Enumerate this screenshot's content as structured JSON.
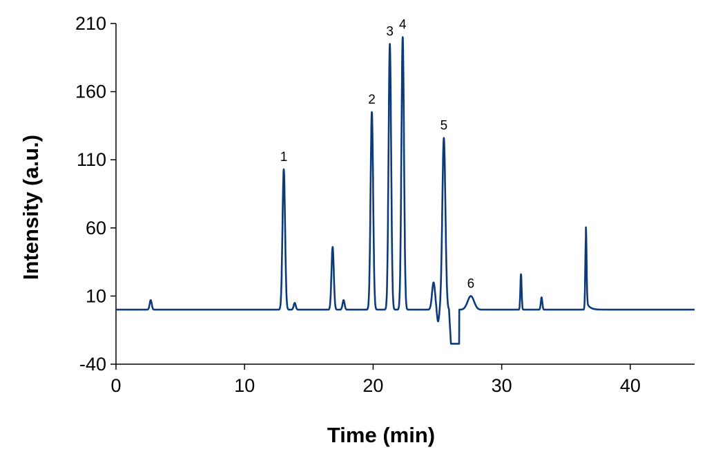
{
  "chart_data": {
    "type": "line",
    "title": "",
    "xlabel": "Time (min)",
    "ylabel": "Intensity (a.u.)",
    "xlim": [
      0,
      45
    ],
    "ylim": [
      -40,
      210
    ],
    "xticks": [
      0,
      10,
      20,
      30,
      40
    ],
    "yticks": [
      -40,
      10,
      60,
      110,
      160,
      210
    ],
    "grid": false,
    "legend": "none",
    "line_color": "#0d3b7a",
    "baseline": 0,
    "peaks": [
      {
        "label": "",
        "x": 2.7,
        "y": 7,
        "width": 0.08
      },
      {
        "label": "1",
        "x": 13.05,
        "y": 103,
        "width": 0.1
      },
      {
        "label": "",
        "x": 13.9,
        "y": 5,
        "width": 0.08
      },
      {
        "label": "",
        "x": 16.85,
        "y": 46,
        "width": 0.09
      },
      {
        "label": "",
        "x": 17.7,
        "y": 7,
        "width": 0.08
      },
      {
        "label": "2",
        "x": 19.9,
        "y": 145,
        "width": 0.1
      },
      {
        "label": "3",
        "x": 21.3,
        "y": 195,
        "width": 0.1
      },
      {
        "label": "4",
        "x": 22.3,
        "y": 200,
        "width": 0.1
      },
      {
        "label": "",
        "x": 24.7,
        "y": 20,
        "width": 0.12
      },
      {
        "label": "5",
        "x": 25.5,
        "y": 126,
        "width": 0.12
      },
      {
        "label": "6",
        "x": 27.6,
        "y": 10,
        "width": 0.25
      },
      {
        "label": "",
        "x": 31.5,
        "y": 26,
        "width": 0.05
      },
      {
        "label": "",
        "x": 33.1,
        "y": 9,
        "width": 0.06
      },
      {
        "label": "",
        "x": 36.55,
        "y": 54,
        "width": 0.05
      }
    ],
    "dips": [
      {
        "x": 25.05,
        "y": -9,
        "width": 0.08
      },
      {
        "x_start": 25.9,
        "x_end": 26.7,
        "y": -25
      }
    ],
    "peak_labels": [
      {
        "text": "1",
        "x": 13.05,
        "y": 103
      },
      {
        "text": "2",
        "x": 19.9,
        "y": 145
      },
      {
        "text": "3",
        "x": 21.3,
        "y": 195
      },
      {
        "text": "4",
        "x": 22.3,
        "y": 200
      },
      {
        "text": "5",
        "x": 25.5,
        "y": 126
      },
      {
        "text": "6",
        "x": 27.6,
        "y": 10
      }
    ]
  }
}
